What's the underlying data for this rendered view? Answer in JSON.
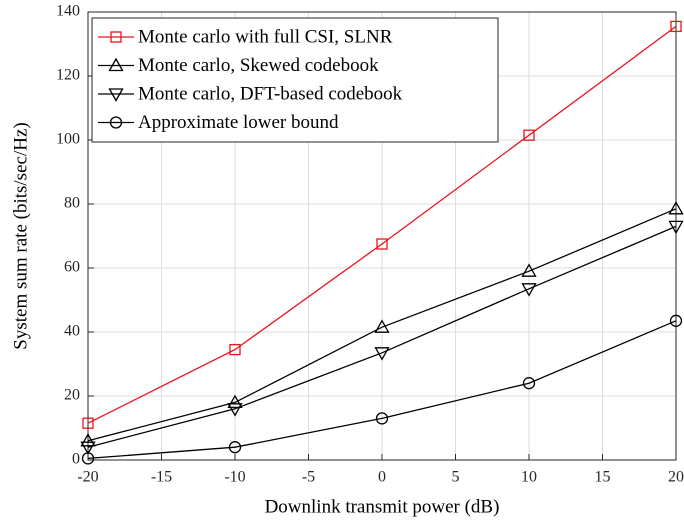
{
  "chart_data": {
    "type": "line",
    "xlabel": "Downlink transmit power (dB)",
    "ylabel": "System sum rate (bits/sec/Hz)",
    "x": [
      -20,
      -10,
      0,
      10,
      20
    ],
    "series": [
      {
        "name": "Monte carlo with full CSI, SLNR",
        "color": "#e8141b",
        "marker": "square",
        "values": [
          11.5,
          34.5,
          67.5,
          101.5,
          135.5
        ]
      },
      {
        "name": "Monte carlo, Skewed codebook",
        "color": "#000000",
        "marker": "triangle-up",
        "values": [
          6,
          18,
          41.5,
          59,
          78.5
        ]
      },
      {
        "name": "Monte carlo, DFT-based codebook",
        "color": "#000000",
        "marker": "triangle-down",
        "values": [
          4,
          16,
          33.5,
          53.5,
          73
        ]
      },
      {
        "name": "Approximate lower bound",
        "color": "#000000",
        "marker": "circle",
        "values": [
          0.5,
          4,
          13,
          24,
          43.5
        ]
      }
    ],
    "xlim": [
      -20,
      20
    ],
    "xticks": [
      -20,
      -15,
      -10,
      -5,
      0,
      5,
      10,
      15,
      20
    ],
    "ylim": [
      0,
      140
    ],
    "yticks": [
      0,
      20,
      40,
      60,
      80,
      100,
      120,
      140
    ],
    "grid": true,
    "legend": "top-left"
  }
}
